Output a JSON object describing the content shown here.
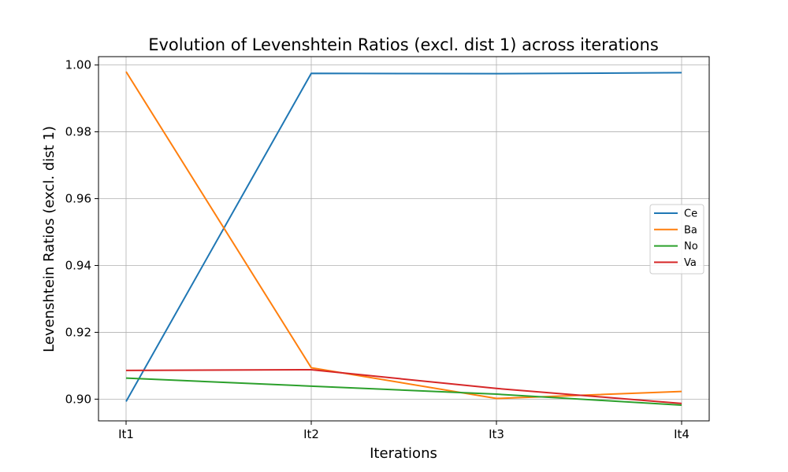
{
  "chart_data": {
    "type": "line",
    "title": "Evolution of Levenshtein Ratios (excl. dist 1) across iterations",
    "xlabel": "Iterations",
    "ylabel": "Levenshtein Ratios (excl. dist 1)",
    "categories": [
      "It1",
      "It2",
      "It3",
      "It4"
    ],
    "ylim": [
      0.8935,
      1.0025
    ],
    "yticks": [
      "0.90",
      "0.92",
      "0.94",
      "0.96",
      "0.98",
      "1.00"
    ],
    "ytick_values": [
      0.9,
      0.92,
      0.94,
      0.96,
      0.98,
      1.0
    ],
    "grid": true,
    "legend_position": "center-right",
    "series": [
      {
        "name": "Ce",
        "color": "#1f77b4",
        "values": [
          0.8993,
          0.9975,
          0.9974,
          0.9977
        ]
      },
      {
        "name": "Ba",
        "color": "#ff7f0e",
        "values": [
          0.998,
          0.9094,
          0.9002,
          0.9023
        ]
      },
      {
        "name": "No",
        "color": "#2ca02c",
        "values": [
          0.9063,
          0.9039,
          0.9015,
          0.8982
        ]
      },
      {
        "name": "Va",
        "color": "#d62728",
        "values": [
          0.9086,
          0.9088,
          0.9032,
          0.8987
        ]
      }
    ]
  }
}
